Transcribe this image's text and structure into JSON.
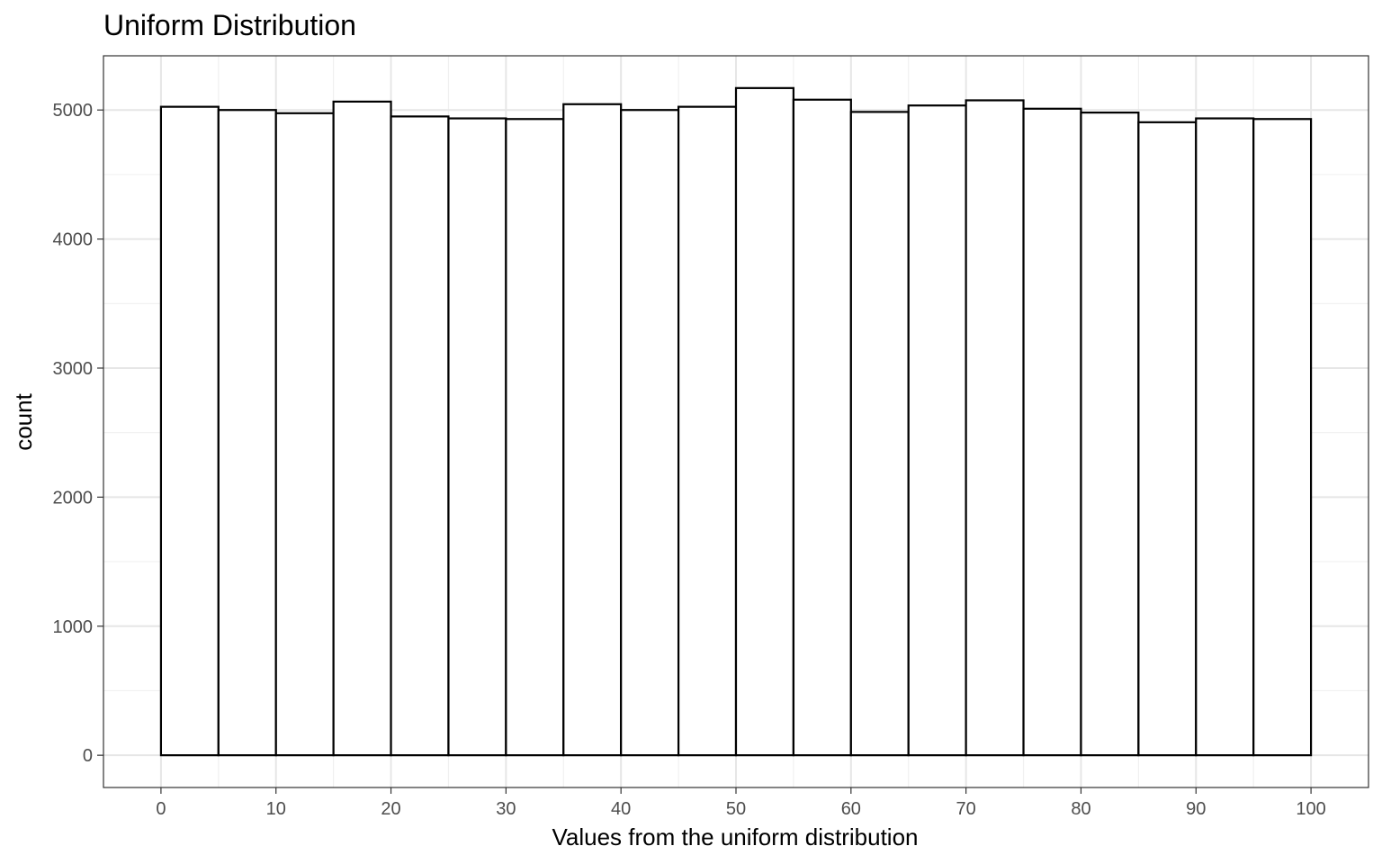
{
  "chart_data": {
    "type": "bar",
    "title": "Uniform Distribution",
    "xlabel": "Values from the uniform distribution",
    "ylabel": "count",
    "bins": [
      {
        "x0": 0,
        "x1": 5,
        "count": 5025
      },
      {
        "x0": 5,
        "x1": 10,
        "count": 5000
      },
      {
        "x0": 10,
        "x1": 15,
        "count": 4975
      },
      {
        "x0": 15,
        "x1": 20,
        "count": 5065
      },
      {
        "x0": 20,
        "x1": 25,
        "count": 4950
      },
      {
        "x0": 25,
        "x1": 30,
        "count": 4935
      },
      {
        "x0": 30,
        "x1": 35,
        "count": 4930
      },
      {
        "x0": 35,
        "x1": 40,
        "count": 5045
      },
      {
        "x0": 40,
        "x1": 45,
        "count": 5000
      },
      {
        "x0": 45,
        "x1": 50,
        "count": 5025
      },
      {
        "x0": 50,
        "x1": 55,
        "count": 5170
      },
      {
        "x0": 55,
        "x1": 60,
        "count": 5080
      },
      {
        "x0": 60,
        "x1": 65,
        "count": 4985
      },
      {
        "x0": 65,
        "x1": 70,
        "count": 5035
      },
      {
        "x0": 70,
        "x1": 75,
        "count": 5075
      },
      {
        "x0": 75,
        "x1": 80,
        "count": 5010
      },
      {
        "x0": 80,
        "x1": 85,
        "count": 4980
      },
      {
        "x0": 85,
        "x1": 90,
        "count": 4905
      },
      {
        "x0": 90,
        "x1": 95,
        "count": 4935
      },
      {
        "x0": 95,
        "x1": 100,
        "count": 4930
      }
    ],
    "xlim": [
      -5,
      105
    ],
    "ylim": [
      -250,
      5420
    ],
    "x_ticks": [
      0,
      10,
      20,
      30,
      40,
      50,
      60,
      70,
      80,
      90,
      100
    ],
    "x_tick_labels": [
      "0",
      "10",
      "20",
      "30",
      "40",
      "50",
      "60",
      "70",
      "80",
      "90",
      "100"
    ],
    "y_ticks": [
      0,
      1000,
      2000,
      3000,
      4000,
      5000
    ],
    "y_tick_labels": [
      "0",
      "1000",
      "2000",
      "3000",
      "4000",
      "5000"
    ],
    "grid": true,
    "bar_fill": "#ffffff",
    "bar_stroke": "#000000",
    "grid_color": "#e6e6e6",
    "panel_border_color": "#333333"
  }
}
